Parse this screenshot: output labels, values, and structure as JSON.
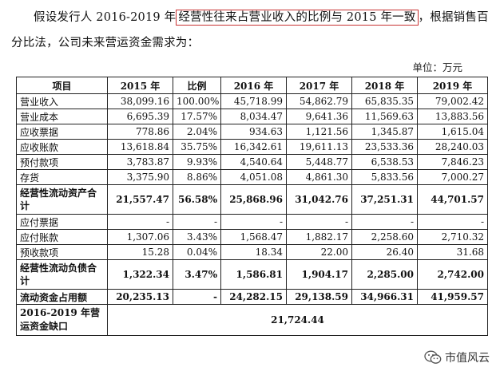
{
  "paragraph": {
    "before": "假设发行人 2016-2019 年",
    "highlight": "经营性往来占营业收入的比例与 2015 年一致",
    "after": "，根据销售百分比法，公司未来营运资金需求为："
  },
  "unit_label": "单位：万元",
  "table": {
    "headers": [
      "项目",
      "2015 年",
      "比例",
      "2016 年",
      "2017 年",
      "2018 年",
      "2019 年"
    ],
    "rows": [
      {
        "cells": [
          "营业收入",
          "38,099.16",
          "100.00%",
          "45,718.99",
          "54,862.79",
          "65,835.35",
          "79,002.42"
        ]
      },
      {
        "cells": [
          "营业成本",
          "6,695.39",
          "17.57%",
          "8,034.47",
          "9,641.36",
          "11,569.63",
          "13,883.56"
        ]
      },
      {
        "cells": [
          "应收票据",
          "778.86",
          "2.04%",
          "934.63",
          "1,121.56",
          "1,345.87",
          "1,615.04"
        ]
      },
      {
        "cells": [
          "应收账款",
          "13,618.84",
          "35.75%",
          "16,342.61",
          "19,611.13",
          "23,533.36",
          "28,240.03"
        ]
      },
      {
        "cells": [
          "预付款项",
          "3,783.87",
          "9.93%",
          "4,540.64",
          "5,448.77",
          "6,538.53",
          "7,846.23"
        ]
      },
      {
        "cells": [
          "存货",
          "3,375.90",
          "8.86%",
          "4,051.08",
          "4,861.30",
          "5,833.56",
          "7,000.27"
        ]
      },
      {
        "cells": [
          "经营性流动资产合计",
          "21,557.47",
          "56.58%",
          "25,868.96",
          "31,042.76",
          "37,251.31",
          "44,701.57"
        ]
      },
      {
        "cells": [
          "应付票据",
          "-",
          "-",
          "-",
          "-",
          "-",
          "-"
        ]
      },
      {
        "cells": [
          "应付账款",
          "1,307.06",
          "3.43%",
          "1,568.47",
          "1,882.17",
          "2,258.60",
          "2,710.32"
        ]
      },
      {
        "cells": [
          "预收款项",
          "15.28",
          "0.04%",
          "18.34",
          "22.00",
          "26.40",
          "31.68"
        ]
      },
      {
        "cells": [
          "经营性流动负债合计",
          "1,322.34",
          "3.47%",
          "1,586.81",
          "1,904.17",
          "2,285.00",
          "2,742.00"
        ]
      },
      {
        "cells": [
          "流动资金占用额",
          "20,235.13",
          "-",
          "24,282.15",
          "29,138.59",
          "34,966.31",
          "41,959.57"
        ]
      }
    ],
    "gap_row": {
      "label": "2016-2019 年营运资金缺口",
      "value": "21,724.44"
    }
  },
  "watermark": {
    "text": "市值风云",
    "icon": "wechat-icon"
  },
  "colors": {
    "highlight_border": "#c83232"
  }
}
